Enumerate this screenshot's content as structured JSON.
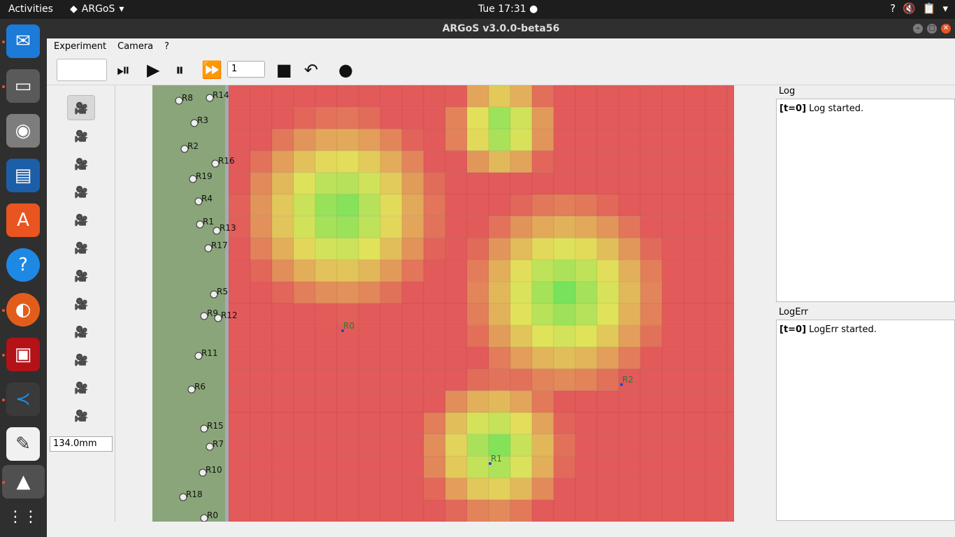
{
  "topbar": {
    "activities": "Activities",
    "app_name": "ARGoS",
    "clock": "Tue 17:31"
  },
  "window": {
    "title": "ARGoS v3.0.0-beta56"
  },
  "menubar": {
    "items": [
      "Experiment",
      "Camera",
      "?"
    ]
  },
  "toolbar": {
    "speed_value": "1"
  },
  "left_panel": {
    "zoom_value": "134.0mm",
    "camera_count": 12
  },
  "log": {
    "title": "Log",
    "entry_prefix": "[t=0]",
    "entry_text": " Log started."
  },
  "logerr": {
    "title": "LogErr",
    "entry_prefix": "[t=0]",
    "entry_text": " LogErr started."
  },
  "arena": {
    "robots_left": [
      "R8",
      "R14",
      "R3",
      "R2",
      "R16",
      "R19",
      "R4",
      "R1",
      "R13",
      "R17",
      "R5",
      "R9",
      "R12",
      "R11",
      "R6",
      "R15",
      "R7",
      "R10",
      "R18",
      "R0"
    ],
    "robots_field": [
      "R0",
      "R2",
      "R1"
    ]
  }
}
